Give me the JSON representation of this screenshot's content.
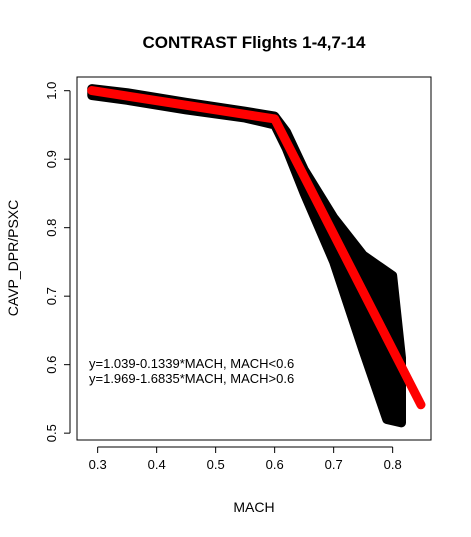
{
  "chart_data": {
    "type": "scatter",
    "title": "CONTRAST Flights 1-4,7-14",
    "xlabel": "MACH",
    "ylabel": "CAVP_DPR/PSXC",
    "xlim": [
      0.265,
      0.865
    ],
    "ylim": [
      0.49,
      1.02
    ],
    "x_ticks": [
      0.3,
      0.4,
      0.5,
      0.6,
      0.7,
      0.8
    ],
    "y_ticks": [
      0.5,
      0.6,
      0.7,
      0.8,
      0.9,
      1.0
    ],
    "x_tick_labels": [
      "0.3",
      "0.4",
      "0.5",
      "0.6",
      "0.7",
      "0.8"
    ],
    "y_tick_labels": [
      "0.5",
      "0.6",
      "0.7",
      "0.8",
      "0.9",
      "1.0"
    ],
    "grid": false,
    "point_color": "#000000",
    "fit_color": "#ff0000",
    "series": [
      {
        "points_upper_edge": [
          [
            0.29,
            1.003
          ],
          [
            0.35,
            0.997
          ],
          [
            0.45,
            0.983
          ],
          [
            0.55,
            0.97
          ],
          [
            0.6,
            0.963
          ],
          [
            0.62,
            0.94
          ],
          [
            0.65,
            0.885
          ],
          [
            0.7,
            0.815
          ],
          [
            0.75,
            0.76
          ],
          [
            0.8,
            0.73
          ],
          [
            0.815,
            0.61
          ]
        ],
        "points_lower_edge": [
          [
            0.29,
            0.993
          ],
          [
            0.35,
            0.986
          ],
          [
            0.45,
            0.972
          ],
          [
            0.55,
            0.96
          ],
          [
            0.6,
            0.95
          ],
          [
            0.62,
            0.915
          ],
          [
            0.65,
            0.85
          ],
          [
            0.7,
            0.75
          ],
          [
            0.75,
            0.62
          ],
          [
            0.79,
            0.52
          ],
          [
            0.815,
            0.515
          ]
        ]
      }
    ],
    "fit_lines": [
      {
        "x": [
          0.29,
          0.6
        ],
        "y": [
          1.0002,
          0.9587
        ]
      },
      {
        "x": [
          0.6,
          0.848
        ],
        "y": [
          0.9589,
          0.5414
        ]
      }
    ],
    "annotations": [
      "y=1.039-0.1339*MACH, MACH<0.6",
      "y=1.969-1.6835*MACH, MACH>0.6"
    ]
  }
}
